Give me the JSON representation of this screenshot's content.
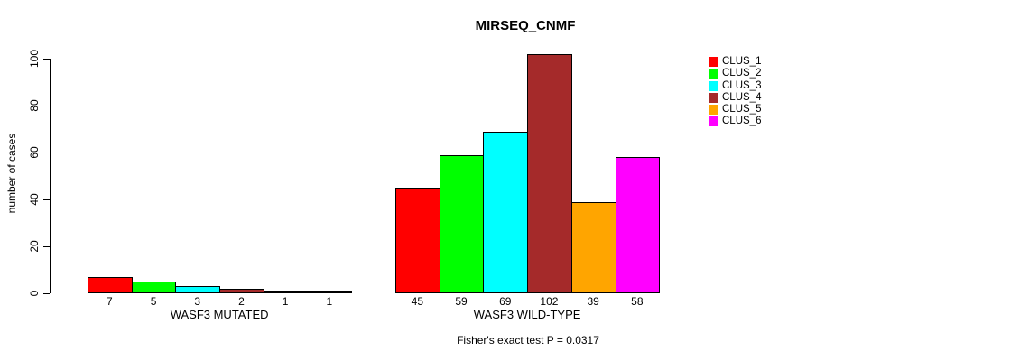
{
  "title": "MIRSEQ_CNMF",
  "footer": "Fisher's exact test P = 0.0317",
  "chart_data": {
    "type": "bar",
    "title": "MIRSEQ_CNMF",
    "xlabel": "",
    "ylabel": "number of cases",
    "ylim": [
      0,
      100
    ],
    "yticks": [
      0,
      20,
      40,
      60,
      80,
      100
    ],
    "grid": false,
    "legend_position": "right",
    "bar_value_labels_shown": true,
    "categories": [
      "WASF3 MUTATED",
      "WASF3 WILD-TYPE"
    ],
    "series": [
      {
        "name": "CLUS_1",
        "color": "#FF0000",
        "values": [
          7,
          45
        ]
      },
      {
        "name": "CLUS_2",
        "color": "#00FF00",
        "values": [
          5,
          59
        ]
      },
      {
        "name": "CLUS_3",
        "color": "#00FFFF",
        "values": [
          3,
          69
        ]
      },
      {
        "name": "CLUS_4",
        "color": "#A52A2A",
        "values": [
          2,
          102
        ]
      },
      {
        "name": "CLUS_5",
        "color": "#FFA500",
        "values": [
          1,
          39
        ]
      },
      {
        "name": "CLUS_6",
        "color": "#FF00FF",
        "values": [
          1,
          58
        ]
      }
    ],
    "annotation": "Fisher's exact test P = 0.0317"
  }
}
